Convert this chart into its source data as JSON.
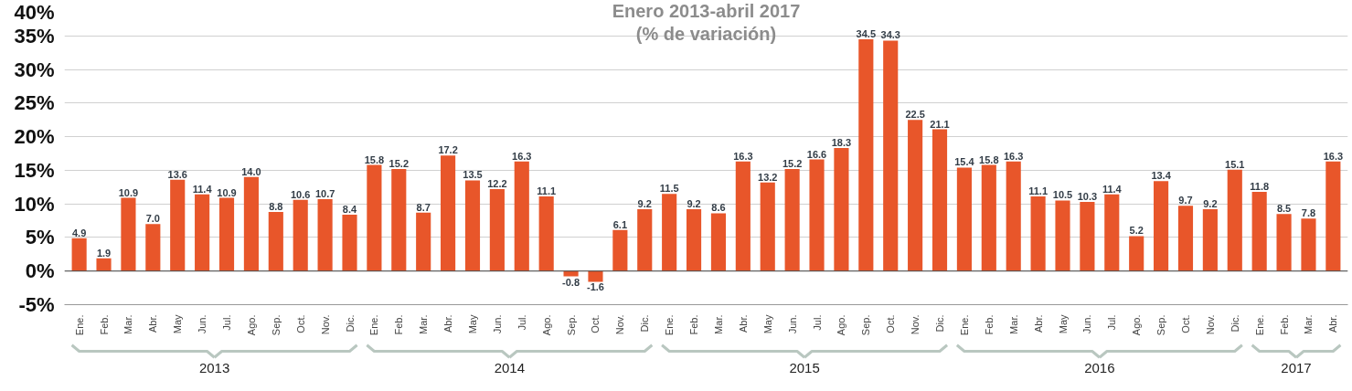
{
  "chart_data": {
    "type": "bar",
    "title": "Enero 2013-abril 2017",
    "subtitle": "(% de variación)",
    "categories": [
      "Ene.",
      "Feb.",
      "Mar.",
      "Abr.",
      "May",
      "Jun.",
      "Jul.",
      "Ago.",
      "Sep.",
      "Oct.",
      "Nov.",
      "Dic.",
      "Ene.",
      "Feb.",
      "Mar.",
      "Abr.",
      "May",
      "Jun.",
      "Jul.",
      "Ago.",
      "Sep.",
      "Oct.",
      "Nov.",
      "Dic.",
      "Ene.",
      "Feb.",
      "Mar.",
      "Abr.",
      "May",
      "Jun.",
      "Jul.",
      "Ago.",
      "Sep.",
      "Oct.",
      "Nov.",
      "Dic.",
      "Ene.",
      "Feb.",
      "Mar.",
      "Abr.",
      "May",
      "Jun.",
      "Jul.",
      "Ago.",
      "Sep.",
      "Oct.",
      "Nov.",
      "Dic.",
      "Ene.",
      "Feb.",
      "Mar.",
      "Abr."
    ],
    "values": [
      4.9,
      1.9,
      10.9,
      7.0,
      13.6,
      11.4,
      10.9,
      14.0,
      8.8,
      10.6,
      10.7,
      8.4,
      15.8,
      15.2,
      8.7,
      17.2,
      13.5,
      12.2,
      16.3,
      11.1,
      -0.8,
      -1.6,
      6.1,
      9.2,
      11.5,
      9.2,
      8.6,
      16.3,
      13.2,
      15.2,
      16.6,
      18.3,
      34.5,
      34.3,
      22.5,
      21.1,
      15.4,
      15.8,
      16.3,
      11.1,
      10.5,
      10.3,
      11.4,
      5.2,
      13.4,
      9.7,
      9.2,
      15.1,
      11.8,
      8.5,
      7.8,
      16.3
    ],
    "value_labels": [
      "4.9",
      "1.9",
      "10.9",
      "7.0",
      "13.6",
      "11.4",
      "10.9",
      "14.0",
      "8.8",
      "10.6",
      "10.7",
      "8.4",
      "15.8",
      "15.2",
      "8.7",
      "17.2",
      "13.5",
      "12.2",
      "16.3",
      "11.1",
      "-0.8",
      "-1.6",
      "6.1",
      "9.2",
      "11.5",
      "9.2",
      "8.6",
      "16.3",
      "13.2",
      "15.2",
      "16.6",
      "18.3",
      "34.5",
      "34.3",
      "22.5",
      "21.1",
      "15.4",
      "15.8",
      "16.3",
      "11.1",
      "10.5",
      "10.3",
      "11.4",
      "5.2",
      "13.4",
      "9.7",
      "9.2",
      "15.1",
      "11.8",
      "8.5",
      "7.8",
      "16.3"
    ],
    "color": "#e8562a",
    "ylim": [
      -5,
      40
    ],
    "yticks": [
      {
        "value": -5,
        "label": "-5%"
      },
      {
        "value": 0,
        "label": "0%"
      },
      {
        "value": 5,
        "label": "5%"
      },
      {
        "value": 10,
        "label": "10%"
      },
      {
        "value": 15,
        "label": "15%"
      },
      {
        "value": 20,
        "label": "20%"
      },
      {
        "value": 25,
        "label": "25%"
      },
      {
        "value": 30,
        "label": "30%"
      },
      {
        "value": 35,
        "label": "35%"
      },
      {
        "value": 40,
        "label": "40%"
      }
    ],
    "grid": "y",
    "annotations": [
      "2013",
      "2014",
      "2015",
      "2016",
      "2017"
    ]
  }
}
